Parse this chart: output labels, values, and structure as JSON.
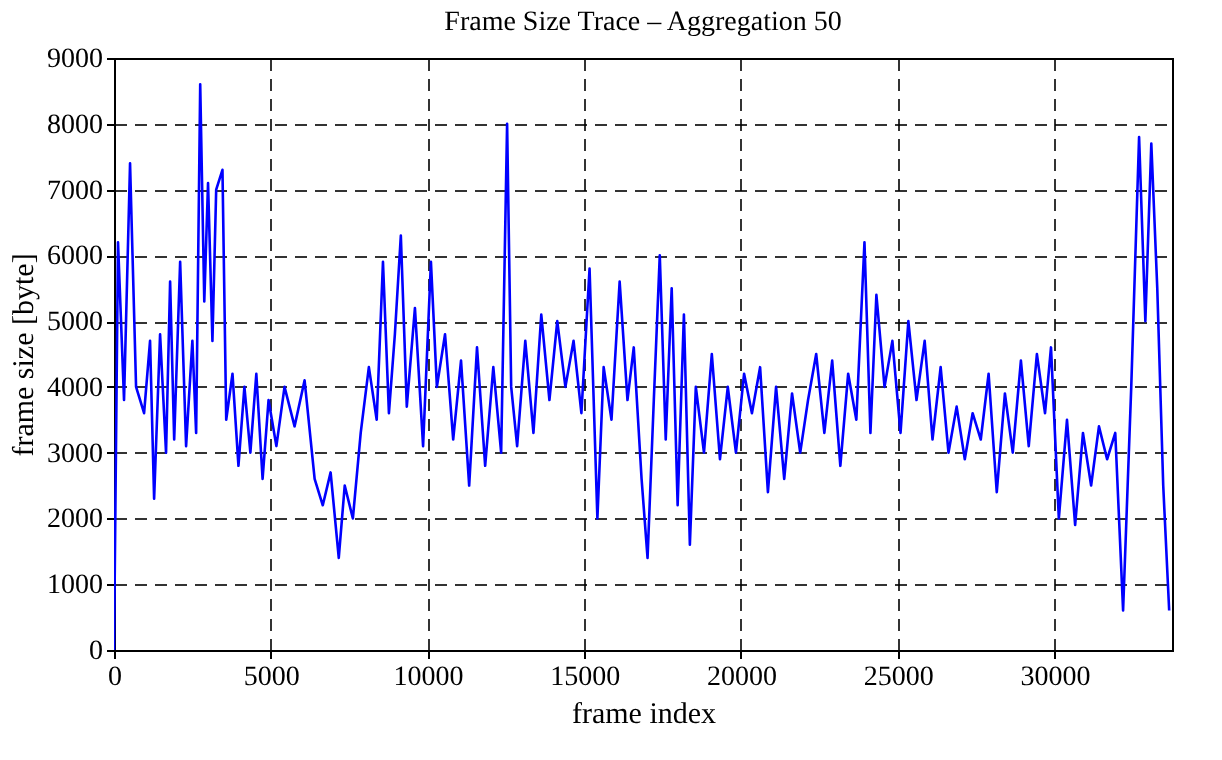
{
  "chart_data": {
    "type": "line",
    "title": "Frame Size Trace – Aggregation 50",
    "xlabel": "frame index",
    "ylabel": "frame size [byte]",
    "x": [
      0,
      128,
      320,
      512,
      704,
      960,
      1150,
      1280,
      1470,
      1660,
      1790,
      1920,
      2110,
      2300,
      2500,
      2620,
      2750,
      2880,
      3000,
      3140,
      3260,
      3460,
      3580,
      3780,
      3970,
      4160,
      4350,
      4540,
      4740,
      4930,
      5180,
      5440,
      5760,
      6080,
      6400,
      6660,
      6910,
      7170,
      7360,
      7620,
      7870,
      8130,
      8380,
      8580,
      8770,
      8960,
      9150,
      9340,
      9600,
      9860,
      10110,
      10300,
      10560,
      10820,
      11070,
      11330,
      11580,
      11840,
      12100,
      12350,
      12540,
      12670,
      12860,
      13120,
      13380,
      13630,
      13890,
      14140,
      14400,
      14660,
      14910,
      15170,
      15420,
      15620,
      15870,
      16130,
      16380,
      16580,
      16830,
      17020,
      17220,
      17410,
      17600,
      17790,
      17980,
      18180,
      18370,
      18560,
      18820,
      19070,
      19330,
      19580,
      19840,
      20100,
      20350,
      20610,
      20860,
      21120,
      21380,
      21630,
      21890,
      22140,
      22400,
      22660,
      22910,
      23170,
      23420,
      23680,
      23940,
      24130,
      24320,
      24580,
      24830,
      25090,
      25340,
      25600,
      25860,
      26110,
      26370,
      26620,
      26880,
      27140,
      27390,
      27650,
      27900,
      28160,
      28420,
      28670,
      28930,
      29180,
      29440,
      29700,
      29890,
      30140,
      30400,
      30660,
      30910,
      31170,
      31420,
      31680,
      31940,
      32190,
      32450,
      32700,
      32900,
      33090,
      33280,
      33470,
      33660
    ],
    "series": [
      {
        "color": "#0000ff",
        "values": [
          0,
          6200,
          3800,
          7400,
          4000,
          3600,
          4700,
          2300,
          4800,
          3000,
          5600,
          3200,
          5900,
          3100,
          4700,
          3300,
          8600,
          5300,
          7100,
          4700,
          7000,
          7300,
          3500,
          4200,
          2800,
          4000,
          3000,
          4200,
          2600,
          3800,
          3100,
          4000,
          3400,
          4100,
          2600,
          2200,
          2700,
          1400,
          2500,
          2000,
          3300,
          4300,
          3500,
          5900,
          3600,
          4800,
          6300,
          3700,
          5200,
          3100,
          5900,
          4000,
          4800,
          3200,
          4400,
          2500,
          4600,
          2800,
          4300,
          3000,
          8000,
          4000,
          3100,
          4700,
          3300,
          5100,
          3800,
          5000,
          4000,
          4700,
          3600,
          5800,
          2000,
          4300,
          3500,
          5600,
          3800,
          4600,
          2600,
          1400,
          3800,
          6000,
          3200,
          5500,
          2200,
          5100,
          1600,
          4000,
          3000,
          4500,
          2900,
          4000,
          3000,
          4200,
          3600,
          4300,
          2400,
          4000,
          2600,
          3900,
          3000,
          3800,
          4500,
          3300,
          4400,
          2800,
          4200,
          3500,
          6200,
          3300,
          5400,
          4000,
          4700,
          3300,
          5000,
          3800,
          4700,
          3200,
          4300,
          3000,
          3700,
          2900,
          3600,
          3200,
          4200,
          2400,
          3900,
          3000,
          4400,
          3100,
          4500,
          3600,
          4600,
          2000,
          3500,
          1900,
          3300,
          2500,
          3400,
          2900,
          3300,
          600,
          4000,
          7800,
          5000,
          7700,
          5500,
          2500,
          600
        ]
      }
    ],
    "xlim": [
      0,
      33750
    ],
    "ylim": [
      0,
      9000
    ],
    "xticks": [
      0,
      5000,
      10000,
      15000,
      20000,
      25000,
      30000
    ],
    "yticks": [
      0,
      1000,
      2000,
      3000,
      4000,
      5000,
      6000,
      7000,
      8000,
      9000
    ],
    "grid": true,
    "line_style": "solid"
  }
}
